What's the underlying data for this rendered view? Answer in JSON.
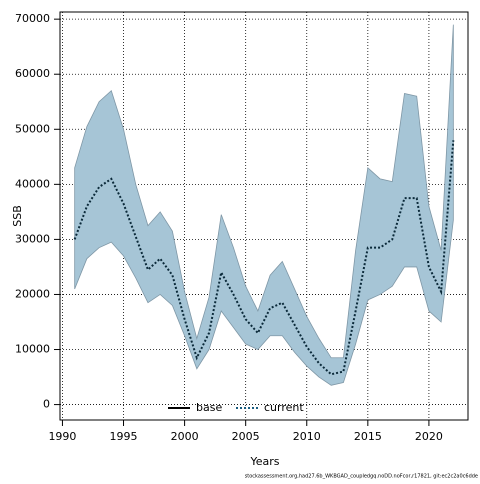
{
  "chart_data": {
    "type": "band-line",
    "xlabel": "Years",
    "ylabel": "SSB",
    "footnote": "stockassessment.org,had27.6b_WKBGAD_coupledgq.noDD.noFcor,r17821, git:ec2c2a0c6dde",
    "x": [
      1991,
      1992,
      1993,
      1994,
      1995,
      1996,
      1997,
      1998,
      1999,
      2000,
      2001,
      2002,
      2003,
      2004,
      2005,
      2006,
      2007,
      2008,
      2009,
      2010,
      2011,
      2012,
      2013,
      2014,
      2015,
      2016,
      2017,
      2018,
      2019,
      2020,
      2021,
      2022
    ],
    "series": [
      {
        "name": "current",
        "color": "#0b2a3a",
        "values": [
          30000,
          36000,
          39500,
          41000,
          36500,
          30500,
          24500,
          26500,
          23500,
          15500,
          8500,
          13000,
          24000,
          20000,
          15500,
          13000,
          17500,
          18500,
          14500,
          10500,
          7500,
          5500,
          6000,
          17000,
          28500,
          28500,
          30000,
          37500,
          37500,
          25000,
          20500,
          48000
        ],
        "upper": [
          43000,
          50500,
          55000,
          57000,
          50000,
          40000,
          32500,
          35000,
          31500,
          20500,
          12000,
          19500,
          34500,
          28500,
          21500,
          17000,
          23500,
          26000,
          21000,
          16000,
          12000,
          8500,
          8500,
          28000,
          43000,
          41000,
          40500,
          56500,
          56000,
          36000,
          28000,
          69000
        ],
        "lower": [
          21000,
          26500,
          28500,
          29500,
          27000,
          23000,
          18500,
          20000,
          18000,
          12500,
          6500,
          10000,
          17000,
          14000,
          11000,
          10000,
          12500,
          12500,
          9500,
          7000,
          5000,
          3500,
          4000,
          11000,
          19000,
          20000,
          21500,
          25000,
          25000,
          17000,
          15000,
          33500
        ]
      }
    ],
    "band_color": "#a6c5d6",
    "legend": [
      {
        "name": "base",
        "color": "#000000",
        "dash": false
      },
      {
        "name": "current",
        "color": "#1a5d80",
        "dash": true
      }
    ],
    "xlim": [
      1989.8,
      2023.2
    ],
    "xticks": [
      1990,
      1995,
      2000,
      2005,
      2010,
      2015,
      2020
    ],
    "ylim": [
      -2800,
      71300
    ],
    "yticks": [
      0,
      10000,
      20000,
      30000,
      40000,
      50000,
      60000,
      70000
    ],
    "grid": true
  }
}
